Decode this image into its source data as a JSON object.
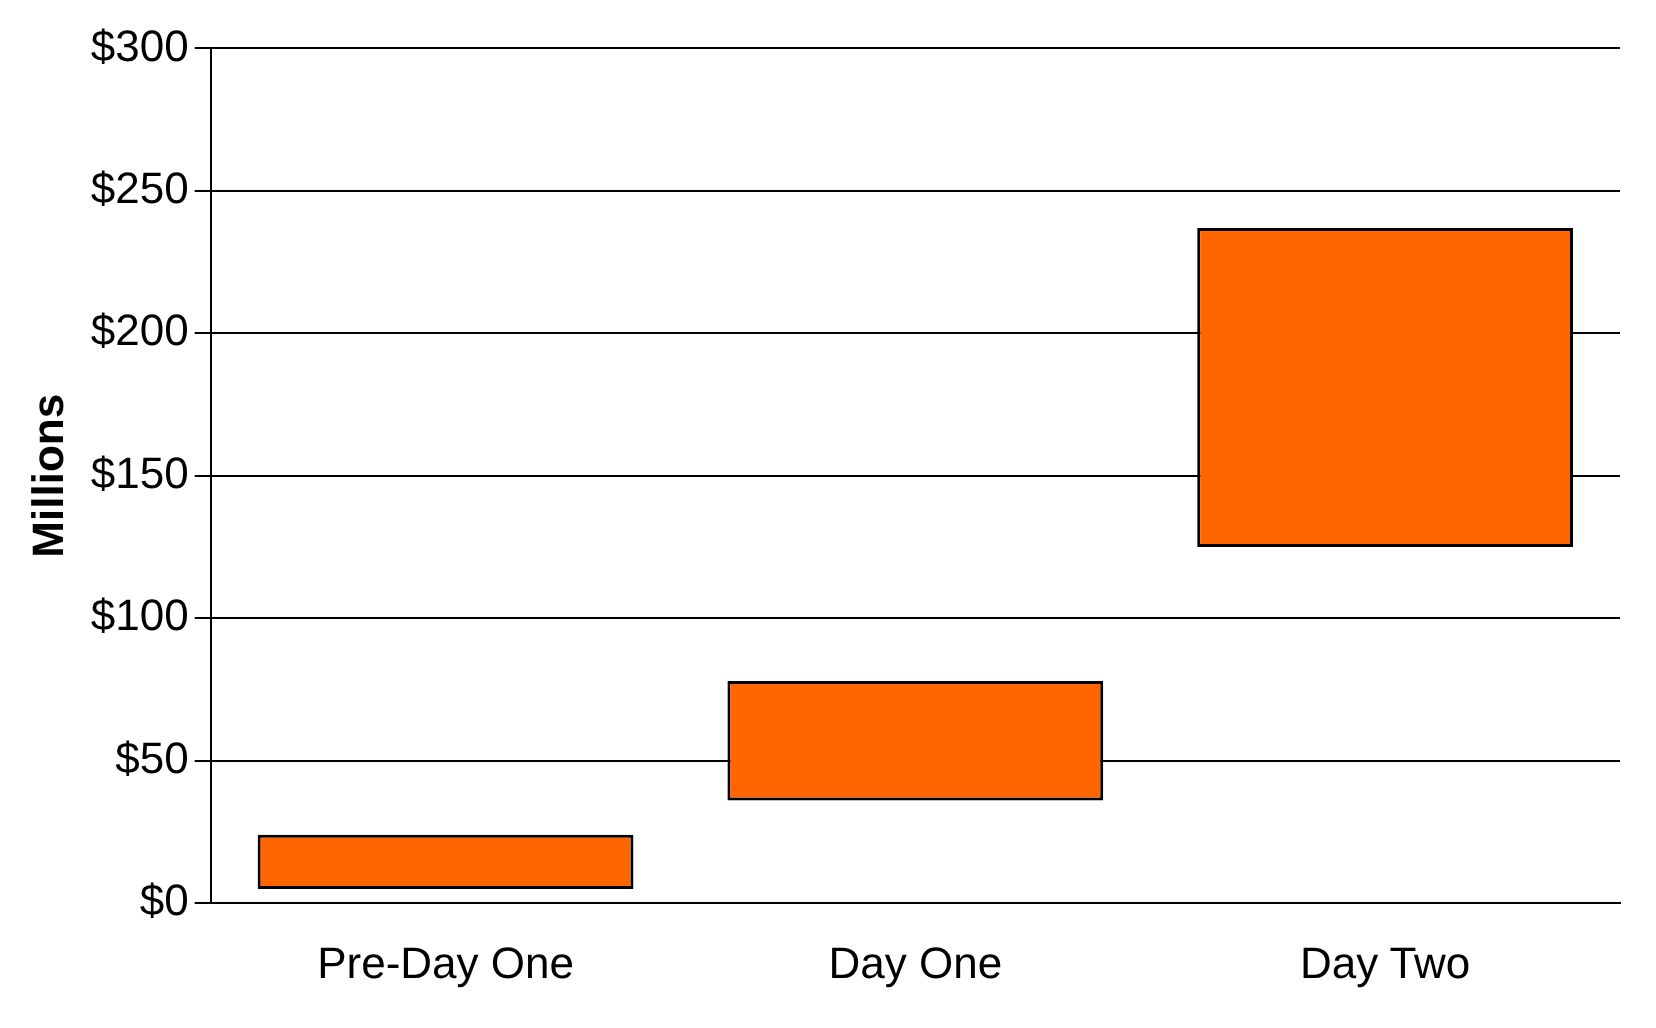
{
  "chart_data": {
    "type": "bar",
    "ylabel": "Millions",
    "categories": [
      "Pre-Day One",
      "Day One",
      "Day Two"
    ],
    "values": [
      19,
      42,
      112
    ],
    "base": [
      5,
      36,
      125
    ],
    "color": "#ff6600",
    "ylim": [
      0,
      300
    ],
    "yticks": [
      {
        "value": 0,
        "label": "$0"
      },
      {
        "value": 50,
        "label": "$50"
      },
      {
        "value": 100,
        "label": "$100"
      },
      {
        "value": 150,
        "label": "$150"
      },
      {
        "value": 200,
        "label": "$200"
      },
      {
        "value": 250,
        "label": "$250"
      },
      {
        "value": 300,
        "label": "$300"
      }
    ],
    "grid": "y",
    "legend": false
  }
}
